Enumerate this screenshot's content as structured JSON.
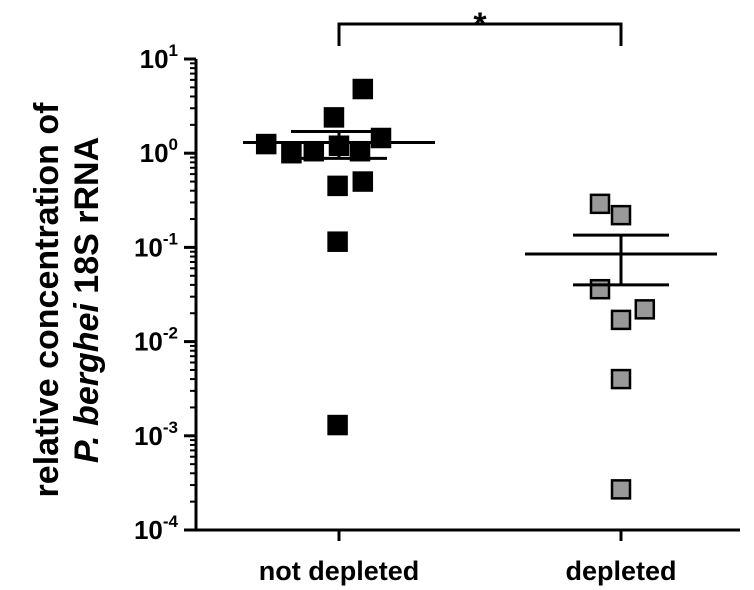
{
  "chart_data": {
    "type": "scatter",
    "yscale": "log",
    "ylim": [
      0.0001,
      10
    ],
    "ylabel": {
      "line1": "relative concentration of",
      "line2_italic": "P. berghei",
      "line2_rest": " 18S rRNA"
    },
    "xlabel": "",
    "y_ticks": [
      {
        "base": "10",
        "exp": "1",
        "value": 10
      },
      {
        "base": "10",
        "exp": "0",
        "value": 1
      },
      {
        "base": "10",
        "exp": "-1",
        "value": 0.1
      },
      {
        "base": "10",
        "exp": "-2",
        "value": 0.01
      },
      {
        "base": "10",
        "exp": "-3",
        "value": 0.001
      },
      {
        "base": "10",
        "exp": "-4",
        "value": 0.0001
      }
    ],
    "categories": [
      "not depleted",
      "depleted"
    ],
    "series": [
      {
        "category": "not depleted",
        "color": "#000000",
        "points": [
          {
            "offset": 0.85,
            "value": 4.8
          },
          {
            "offset": -0.18,
            "value": 2.4
          },
          {
            "offset": -2.6,
            "value": 1.25
          },
          {
            "offset": 1.5,
            "value": 1.45
          },
          {
            "offset": -1.7,
            "value": 1.0
          },
          {
            "offset": -0.9,
            "value": 1.05
          },
          {
            "offset": 0.0,
            "value": 1.2
          },
          {
            "offset": 0.75,
            "value": 1.05
          },
          {
            "offset": -0.05,
            "value": 0.45
          },
          {
            "offset": 0.85,
            "value": 0.5
          },
          {
            "offset": -0.05,
            "value": 0.115
          },
          {
            "offset": -0.05,
            "value": 0.0013
          }
        ],
        "mean": 1.3,
        "sem_upper": 1.7,
        "sem_lower": 0.88
      },
      {
        "category": "depleted",
        "color": "#999999",
        "points": [
          {
            "offset": -0.75,
            "value": 0.29
          },
          {
            "offset": 0.0,
            "value": 0.22
          },
          {
            "offset": -0.75,
            "value": 0.036
          },
          {
            "offset": 0.85,
            "value": 0.022
          },
          {
            "offset": 0.0,
            "value": 0.017
          },
          {
            "offset": 0.0,
            "value": 0.004
          },
          {
            "offset": 0.0,
            "value": 0.00027
          }
        ],
        "mean": 0.085,
        "sem_upper": 0.135,
        "sem_lower": 0.04
      }
    ],
    "significance": {
      "label": "*",
      "between": [
        "not depleted",
        "depleted"
      ]
    }
  }
}
